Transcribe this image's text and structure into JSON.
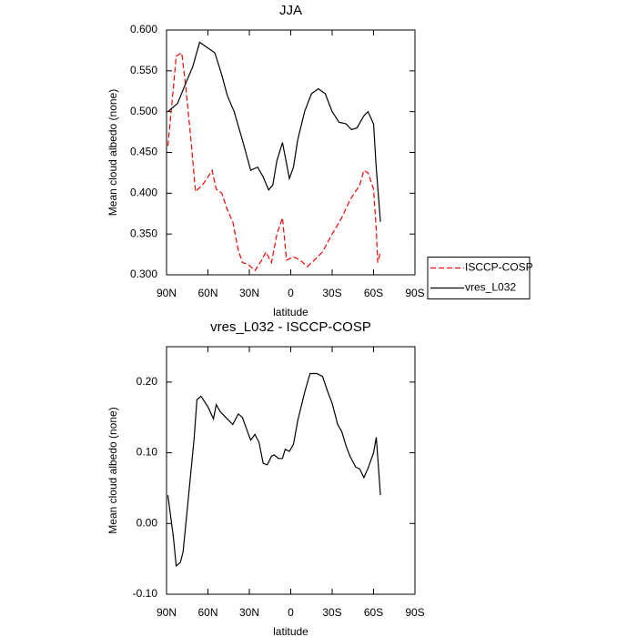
{
  "chart_data": [
    {
      "type": "line",
      "title": "JJA",
      "x_label": "latitude",
      "y_label": "Mean cloud albedo (none)",
      "xlim": [
        90,
        -90
      ],
      "ylim": [
        0.3,
        0.6
      ],
      "xticks": [
        {
          "value": 90,
          "label": "90N"
        },
        {
          "value": 60,
          "label": "60N"
        },
        {
          "value": 30,
          "label": "30N"
        },
        0,
        {
          "value": -30,
          "label": "30S"
        },
        {
          "value": -60,
          "label": "60S"
        },
        {
          "value": -90,
          "label": "90S"
        }
      ],
      "yticks": [
        {
          "value": 0.3,
          "label": "0.300"
        },
        {
          "value": 0.35,
          "label": "0.350"
        },
        {
          "value": 0.4,
          "label": "0.400"
        },
        {
          "value": 0.45,
          "label": "0.450"
        },
        {
          "value": 0.5,
          "label": "0.500"
        },
        {
          "value": 0.55,
          "label": "0.550"
        },
        {
          "value": 0.6,
          "label": "0.600"
        }
      ],
      "legend": "right",
      "series": [
        {
          "name": "ISCCP-COSP",
          "color": "#ff0000",
          "style": "dashed",
          "x": [
            89,
            85,
            83,
            79,
            76,
            72,
            69,
            64,
            60,
            57,
            54,
            50,
            46,
            42,
            38,
            35,
            31,
            26,
            21,
            18,
            14,
            10,
            6,
            3,
            -2,
            -7,
            -12,
            -17,
            -23,
            -30,
            -37,
            -43,
            -50,
            -53,
            -56,
            -60,
            -62,
            -63,
            -65
          ],
          "values": [
            0.458,
            0.53,
            0.568,
            0.572,
            0.53,
            0.46,
            0.402,
            0.41,
            0.42,
            0.428,
            0.405,
            0.4,
            0.38,
            0.365,
            0.33,
            0.315,
            0.313,
            0.305,
            0.318,
            0.328,
            0.315,
            0.35,
            0.37,
            0.318,
            0.322,
            0.318,
            0.31,
            0.318,
            0.328,
            0.35,
            0.37,
            0.392,
            0.41,
            0.428,
            0.425,
            0.405,
            0.355,
            0.315,
            0.328
          ]
        },
        {
          "name": "vres_L032",
          "color": "#000000",
          "style": "solid",
          "x": [
            89,
            82,
            76,
            71,
            66,
            60,
            55,
            50,
            46,
            41,
            35,
            29,
            24,
            20,
            16,
            13,
            10,
            6,
            4,
            1,
            -2,
            -5,
            -10,
            -15,
            -20,
            -25,
            -30,
            -35,
            -40,
            -44,
            -48,
            -53,
            -56,
            -60,
            -62,
            -65
          ],
          "values": [
            0.5,
            0.51,
            0.535,
            0.555,
            0.585,
            0.578,
            0.572,
            0.545,
            0.52,
            0.5,
            0.465,
            0.428,
            0.432,
            0.42,
            0.404,
            0.41,
            0.44,
            0.462,
            0.445,
            0.418,
            0.432,
            0.465,
            0.5,
            0.522,
            0.528,
            0.522,
            0.5,
            0.487,
            0.485,
            0.478,
            0.48,
            0.495,
            0.5,
            0.485,
            0.43,
            0.365
          ]
        }
      ]
    },
    {
      "type": "line",
      "title": "vres_L032 - ISCCP-COSP",
      "x_label": "latitude",
      "y_label": "Mean cloud albedo (none)",
      "xlim": [
        90,
        -90
      ],
      "ylim": [
        -0.1,
        0.25
      ],
      "xticks": [
        {
          "value": 90,
          "label": "90N"
        },
        {
          "value": 60,
          "label": "60N"
        },
        {
          "value": 30,
          "label": "30N"
        },
        0,
        {
          "value": -30,
          "label": "30S"
        },
        {
          "value": -60,
          "label": "60S"
        },
        {
          "value": -90,
          "label": "90S"
        }
      ],
      "yticks": [
        {
          "value": -0.1,
          "label": "-0.10"
        },
        {
          "value": 0,
          "label": "0.00"
        },
        {
          "value": 0.1,
          "label": "0.10"
        },
        {
          "value": 0.2,
          "label": "0.20"
        }
      ],
      "series": [
        {
          "name": null,
          "color": "#000000",
          "style": "solid",
          "x": [
            89,
            85,
            83,
            80,
            78,
            74,
            70,
            68,
            65,
            60,
            56,
            54,
            51,
            46,
            42,
            38,
            35,
            31,
            29,
            26,
            23,
            20,
            17,
            14,
            12,
            9,
            6,
            4,
            1,
            -2,
            -5,
            -10,
            -14,
            -19,
            -23,
            -27,
            -30,
            -34,
            -37,
            -40,
            -43,
            -47,
            -50,
            -53,
            -56,
            -60,
            -62,
            -65
          ],
          "values": [
            0.04,
            -0.02,
            -0.06,
            -0.055,
            -0.04,
            0.04,
            0.12,
            0.175,
            0.18,
            0.165,
            0.148,
            0.168,
            0.158,
            0.148,
            0.14,
            0.155,
            0.15,
            0.128,
            0.118,
            0.126,
            0.115,
            0.085,
            0.083,
            0.095,
            0.097,
            0.092,
            0.092,
            0.105,
            0.102,
            0.112,
            0.145,
            0.185,
            0.212,
            0.212,
            0.208,
            0.185,
            0.17,
            0.14,
            0.13,
            0.11,
            0.095,
            0.08,
            0.077,
            0.065,
            0.078,
            0.1,
            0.122,
            0.04
          ]
        }
      ]
    }
  ]
}
